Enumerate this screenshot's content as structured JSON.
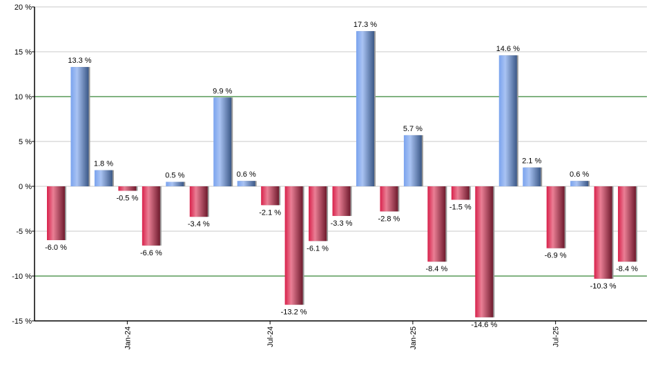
{
  "chart_data": {
    "type": "bar",
    "title": "",
    "xlabel": "",
    "ylabel": "",
    "ylim": [
      -15,
      20
    ],
    "yticks": [
      20,
      15,
      10,
      5,
      0,
      -5,
      -10,
      -15
    ],
    "ytick_labels": [
      "20 %",
      "15 %",
      "10 %",
      "5 %",
      "0 %",
      "-5 %",
      "-10 %",
      "-15 %"
    ],
    "grid": true,
    "highlight_lines": [
      10,
      -10
    ],
    "xtick_labels": [
      {
        "label": "Jan-24",
        "index": 3
      },
      {
        "label": "Jul-24",
        "index": 9
      },
      {
        "label": "Jan-25",
        "index": 15
      },
      {
        "label": "Jul-25",
        "index": 21
      }
    ],
    "values": [
      -6.0,
      13.3,
      1.8,
      -0.5,
      -6.6,
      0.5,
      -3.4,
      9.9,
      0.6,
      -2.1,
      -13.2,
      -6.1,
      -3.3,
      17.3,
      -2.8,
      5.7,
      -8.4,
      -1.5,
      -14.6,
      14.6,
      2.1,
      -6.9,
      0.6,
      -10.3,
      -8.4
    ],
    "data_labels": [
      "-6.0 %",
      "13.3 %",
      "1.8 %",
      "-0.5 %",
      "-6.6 %",
      "0.5 %",
      "-3.4 %",
      "9.9 %",
      "0.6 %",
      "-2.1 %",
      "-13.2 %",
      "-6.1 %",
      "-3.3 %",
      "17.3 %",
      "-2.8 %",
      "5.7 %",
      "-8.4 %",
      "-1.5 %",
      "-14.6 %",
      "14.6 %",
      "2.1 %",
      "-6.9 %",
      "0.6 %",
      "-10.3 %",
      "-8.4 %"
    ],
    "colors": {
      "positive": "#7aa3ee",
      "negative": "#d8214b",
      "highlight_line": "#006400",
      "grid": "#c8c8c8"
    }
  }
}
